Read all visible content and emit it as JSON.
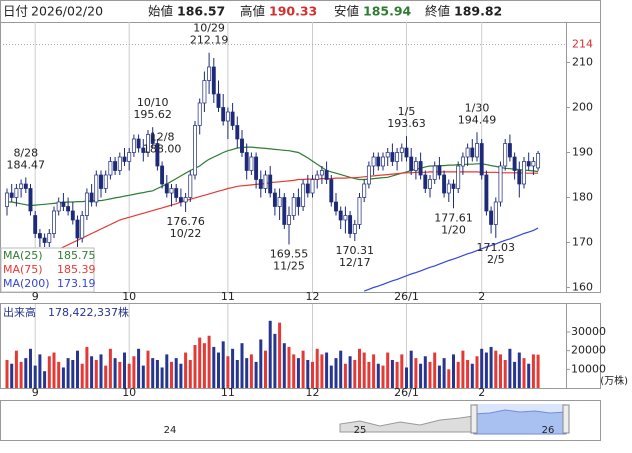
{
  "chart_data": {
    "type": "candlestick",
    "date_label": "日付",
    "date": "2026/02/20",
    "ohlc_labels": [
      "始値",
      "高値",
      "安値",
      "終値"
    ],
    "categories": [
      null,
      null,
      null,
      null,
      null,
      null,
      "9",
      null,
      null,
      null,
      null,
      null,
      null,
      null,
      null,
      null,
      null,
      null,
      null,
      null,
      null,
      null,
      null,
      null,
      null,
      null,
      "10",
      null,
      null,
      null,
      null,
      null,
      null,
      null,
      null,
      null,
      null,
      null,
      null,
      null,
      null,
      null,
      null,
      null,
      null,
      null,
      null,
      "11",
      null,
      null,
      null,
      null,
      null,
      null,
      null,
      null,
      null,
      null,
      null,
      null,
      null,
      null,
      null,
      null,
      null,
      "12",
      null,
      null,
      null,
      null,
      null,
      null,
      null,
      null,
      null,
      null,
      null,
      null,
      null,
      null,
      null,
      null,
      null,
      null,
      null,
      "26/1",
      null,
      null,
      null,
      null,
      null,
      null,
      null,
      null,
      null,
      null,
      null,
      null,
      null,
      null,
      null,
      "2",
      null,
      null,
      null,
      null,
      null,
      null,
      null,
      null,
      null,
      null,
      null,
      null
    ],
    "candles": [
      [
        178,
        182,
        176,
        181
      ],
      [
        181,
        183,
        179,
        180
      ],
      [
        180,
        183,
        178,
        182
      ],
      [
        182,
        184,
        180,
        183
      ],
      [
        183,
        184.47,
        181,
        182
      ],
      [
        182,
        183,
        176,
        177
      ],
      [
        176,
        177,
        171,
        172
      ],
      [
        172,
        173,
        169,
        171
      ],
      [
        171,
        172,
        169,
        170
      ],
      [
        170,
        173,
        169,
        172
      ],
      [
        172,
        178,
        171,
        177
      ],
      [
        177,
        180,
        176,
        179
      ],
      [
        179,
        181,
        177,
        178
      ],
      [
        178,
        180,
        176,
        177
      ],
      [
        177,
        179,
        174,
        175
      ],
      [
        175,
        176,
        169,
        171
      ],
      [
        171,
        177,
        170,
        176
      ],
      [
        176,
        182,
        175,
        181
      ],
      [
        181,
        183,
        178,
        179
      ],
      [
        179,
        186,
        178,
        185
      ],
      [
        185,
        186,
        180,
        182
      ],
      [
        182,
        186,
        181,
        185
      ],
      [
        185,
        189,
        184,
        188
      ],
      [
        188,
        189,
        185,
        186
      ],
      [
        186,
        190,
        185,
        189
      ],
      [
        189,
        191,
        187,
        188
      ],
      [
        188,
        191,
        186,
        190
      ],
      [
        190,
        194,
        189,
        193
      ],
      [
        193,
        194,
        190,
        191
      ],
      [
        191,
        193,
        188,
        190
      ],
      [
        190,
        195,
        189,
        194
      ],
      [
        194,
        195.62,
        191,
        192
      ],
      [
        192,
        193,
        186,
        187
      ],
      [
        187,
        188,
        182,
        183
      ],
      [
        183,
        185,
        180,
        181
      ],
      [
        181,
        183,
        178,
        182
      ],
      [
        182,
        183,
        179,
        180
      ],
      [
        180,
        182,
        178,
        179
      ],
      [
        179,
        181,
        176.76,
        180
      ],
      [
        180,
        186,
        179,
        185
      ],
      [
        185,
        197,
        184,
        196
      ],
      [
        196,
        202,
        194,
        201
      ],
      [
        201,
        208,
        199,
        206
      ],
      [
        206,
        212.19,
        203,
        209
      ],
      [
        209,
        211,
        201,
        203
      ],
      [
        203,
        206,
        199,
        200
      ],
      [
        200,
        203,
        196,
        197
      ],
      [
        197,
        200,
        193,
        199
      ],
      [
        199,
        201,
        195,
        196
      ],
      [
        196,
        198,
        191,
        193
      ],
      [
        193,
        195,
        189,
        190
      ],
      [
        190,
        192,
        184,
        186
      ],
      [
        186,
        190,
        185,
        189
      ],
      [
        189,
        190,
        182,
        184
      ],
      [
        184,
        186,
        180,
        182
      ],
      [
        182,
        186,
        181,
        185
      ],
      [
        185,
        187,
        180,
        181
      ],
      [
        181,
        182,
        176,
        178
      ],
      [
        178,
        182,
        175,
        180
      ],
      [
        180,
        181,
        173,
        174
      ],
      [
        174,
        178,
        169.55,
        176
      ],
      [
        176,
        181,
        175,
        180
      ],
      [
        180,
        182,
        176,
        178
      ],
      [
        178,
        184,
        177,
        183
      ],
      [
        183,
        185,
        180,
        181
      ],
      [
        181,
        185,
        180,
        184
      ],
      [
        184,
        186,
        182,
        185
      ],
      [
        185,
        187,
        183,
        186
      ],
      [
        186,
        188,
        183,
        184
      ],
      [
        184,
        185,
        178,
        179
      ],
      [
        179,
        181,
        176,
        177
      ],
      [
        177,
        178,
        173,
        175
      ],
      [
        175,
        178,
        172,
        176
      ],
      [
        176,
        177,
        171,
        172
      ],
      [
        172,
        175,
        170.31,
        174
      ],
      [
        174,
        181,
        173,
        180
      ],
      [
        180,
        184,
        179,
        183
      ],
      [
        183,
        188,
        182,
        187
      ],
      [
        187,
        190,
        185,
        189
      ],
      [
        189,
        190,
        186,
        187
      ],
      [
        187,
        190,
        186,
        189
      ],
      [
        189,
        191,
        187,
        190
      ],
      [
        190,
        192,
        187,
        188
      ],
      [
        188,
        191,
        186,
        190
      ],
      [
        190,
        192,
        188,
        191
      ],
      [
        191,
        193.63,
        188,
        189
      ],
      [
        189,
        191,
        185,
        186
      ],
      [
        186,
        189,
        184,
        188
      ],
      [
        188,
        190,
        184,
        185
      ],
      [
        185,
        186,
        181,
        182
      ],
      [
        182,
        185,
        180,
        184
      ],
      [
        184,
        188,
        183,
        187
      ],
      [
        187,
        189,
        184,
        185
      ],
      [
        185,
        186,
        180,
        181
      ],
      [
        181,
        184,
        179,
        183
      ],
      [
        183,
        184,
        177.61,
        182
      ],
      [
        182,
        188,
        181,
        187
      ],
      [
        187,
        190,
        185,
        189
      ],
      [
        189,
        192,
        187,
        191
      ],
      [
        191,
        193,
        188,
        189
      ],
      [
        189,
        194.49,
        188,
        192
      ],
      [
        192,
        193,
        184,
        185
      ],
      [
        185,
        186,
        176,
        177
      ],
      [
        177,
        178,
        172,
        174
      ],
      [
        174,
        180,
        171.03,
        179
      ],
      [
        179,
        188,
        178,
        187
      ],
      [
        187,
        193,
        186,
        192
      ],
      [
        192,
        194,
        188,
        189
      ],
      [
        189,
        190,
        184,
        186
      ],
      [
        186,
        188,
        180,
        183
      ],
      [
        183,
        189,
        182,
        188
      ],
      [
        188,
        190,
        186,
        187
      ],
      [
        187,
        189,
        185,
        188
      ],
      [
        186.57,
        190.33,
        185.94,
        189.82
      ]
    ],
    "up_color": "#ffffff",
    "down_color": "#1c2a78",
    "ylim": [
      159,
      219
    ],
    "yticks": [
      160,
      170,
      180,
      190,
      200,
      210
    ],
    "marker": 214,
    "series": [
      {
        "name": "MA(25)",
        "color": "#2e7d32",
        "values": [
          179,
          179,
          178.8,
          178.6,
          178.4,
          178.2,
          178.3,
          178.4,
          178.5,
          178.6,
          178.7,
          178.8,
          178.9,
          179,
          179,
          179.1,
          179.1,
          179.2,
          179.2,
          179.3,
          179.3,
          179.5,
          179.7,
          179.9,
          180.1,
          180.3,
          180.5,
          180.7,
          180.9,
          181.1,
          181.3,
          181.5,
          182,
          182.5,
          183,
          183.6,
          184.2,
          184.8,
          185.4,
          186,
          186.5,
          187,
          187.8,
          188.5,
          189,
          189.5,
          190,
          190.4,
          190.7,
          191,
          191.1,
          191.2,
          191.2,
          191.1,
          191,
          190.9,
          190.8,
          190.7,
          190.6,
          190.5,
          190.4,
          190.2,
          190,
          189.4,
          188.8,
          188.1,
          187.4,
          186.7,
          186,
          185.7,
          185.4,
          185.1,
          184.8,
          184.5,
          184.2,
          184,
          184,
          184.1,
          184.2,
          184.3,
          184.4,
          184.5,
          184.8,
          185.1,
          185.4,
          185.7,
          186,
          186.3,
          186.5,
          186.8,
          187,
          187,
          187.1,
          187.1,
          187.2,
          187.2,
          187.3,
          187.3,
          187.4,
          187.4,
          187.5,
          187.5,
          187.3,
          187.1,
          186.9,
          186.7,
          186.5,
          186.4,
          186.3,
          186.2,
          186.1,
          186,
          185.9,
          185.75
        ]
      },
      {
        "name": "MA(75)",
        "color": "#e53935",
        "values": [
          null,
          null,
          null,
          null,
          null,
          null,
          null,
          null,
          null,
          167.5,
          168,
          168.5,
          169,
          169.5,
          170,
          170.5,
          171,
          171.5,
          172,
          172.5,
          173,
          173.5,
          174,
          174.5,
          175,
          175.3,
          175.6,
          175.9,
          176.2,
          176.5,
          176.8,
          177.1,
          177.4,
          177.7,
          178,
          178.3,
          178.6,
          179,
          179.3,
          179.6,
          179.9,
          180.2,
          180.5,
          180.8,
          181.1,
          181.4,
          181.7,
          182,
          182.2,
          182.5,
          182.6,
          182.7,
          182.8,
          182.9,
          183,
          183.1,
          183.3,
          183.4,
          183.5,
          183.6,
          183.7,
          183.8,
          184,
          184,
          184.1,
          184.1,
          184.1,
          184.2,
          184.2,
          184.2,
          184.3,
          184.3,
          184.3,
          184.4,
          184.4,
          184.5,
          184.6,
          184.7,
          184.8,
          184.9,
          185,
          185.1,
          185.2,
          185.3,
          185.4,
          185.5,
          185.5,
          185.6,
          185.6,
          185.6,
          185.7,
          185.7,
          185.7,
          185.7,
          185.7,
          185.7,
          185.7,
          185.7,
          185.7,
          185.7,
          185.7,
          185.6,
          185.6,
          185.6,
          185.6,
          185.5,
          185.5,
          185.5,
          185.5,
          185.5,
          185.4,
          185.4,
          185.4,
          185.39
        ]
      },
      {
        "name": "MA(200)",
        "color": "#3446d8",
        "values": [
          null,
          null,
          null,
          null,
          null,
          null,
          null,
          null,
          null,
          null,
          null,
          null,
          null,
          null,
          null,
          null,
          null,
          null,
          null,
          null,
          null,
          null,
          null,
          null,
          null,
          null,
          null,
          null,
          null,
          null,
          null,
          null,
          null,
          null,
          null,
          null,
          null,
          null,
          null,
          null,
          null,
          null,
          null,
          null,
          null,
          null,
          null,
          null,
          null,
          null,
          null,
          null,
          null,
          null,
          null,
          null,
          null,
          null,
          null,
          null,
          null,
          null,
          null,
          null,
          null,
          null,
          null,
          null,
          null,
          null,
          null,
          null,
          null,
          null,
          null,
          null,
          159.2,
          159.6,
          160,
          160.3,
          160.7,
          161.1,
          161.5,
          161.8,
          162.2,
          162.6,
          163,
          163.3,
          163.7,
          164.1,
          164.5,
          164.8,
          165.2,
          165.6,
          166,
          166.3,
          166.7,
          167.1,
          167.5,
          167.8,
          168.2,
          168.6,
          169,
          169.3,
          169.7,
          170.1,
          170.5,
          170.8,
          171.2,
          171.6,
          172,
          172.3,
          172.7,
          173.19
        ]
      }
    ],
    "annotations": [
      {
        "date": "8/28",
        "value": 184.47
      },
      {
        "date": "10/10",
        "value": 195.62
      },
      {
        "date": "10/29",
        "value": 212.19
      },
      {
        "date": "10/22",
        "value": 176.76
      },
      {
        "date": "11/25",
        "value": 169.55
      },
      {
        "date": "12/8",
        "value": 188,
        "label": "188.00"
      },
      {
        "date": "12/17",
        "value": 170.31
      },
      {
        "date": "1/5",
        "value": 193.63
      },
      {
        "date": "1/20",
        "value": 177.61
      },
      {
        "date": "1/30",
        "value": 194.49
      },
      {
        "date": "2/5",
        "value": 171.03
      }
    ],
    "volume": {
      "title": "出来高",
      "latest_label": "178,422,337株",
      "unit": "(万株)",
      "ylim": [
        0,
        45000
      ],
      "yticks": [
        10000,
        20000,
        30000
      ],
      "up_color": "#e53935",
      "down_color": "#26358f",
      "values": [
        15000,
        13000,
        20000,
        14000,
        16000,
        21000,
        12000,
        18000,
        9000,
        17000,
        19000,
        14000,
        11000,
        16000,
        15000,
        20000,
        13000,
        22000,
        17000,
        15000,
        18000,
        12000,
        21000,
        16000,
        14000,
        19000,
        13000,
        17000,
        21000,
        12000,
        20000,
        16000,
        15000,
        11000,
        18000,
        14000,
        16000,
        13000,
        19000,
        15000,
        23000,
        27000,
        24000,
        28000,
        22000,
        19000,
        25000,
        17000,
        21000,
        15000,
        24000,
        16000,
        18000,
        14000,
        26000,
        20000,
        36000,
        29000,
        35000,
        24000,
        22000,
        18000,
        16000,
        20000,
        15000,
        14000,
        21000,
        18000,
        19000,
        12000,
        16000,
        20000,
        13000,
        17000,
        15000,
        21000,
        19000,
        14000,
        18000,
        13000,
        12000,
        19000,
        15000,
        14000,
        18000,
        11000,
        20000,
        16000,
        13000,
        17000,
        14000,
        19000,
        12000,
        16000,
        10000,
        18000,
        14000,
        20000,
        15000,
        13000,
        17000,
        21000,
        19000,
        22000,
        20000,
        18000,
        15000,
        21000,
        14000,
        19000,
        16000,
        13000,
        18000,
        17842.2337
      ]
    },
    "navigator": {
      "labels": [
        "24",
        "25",
        "26"
      ]
    }
  }
}
